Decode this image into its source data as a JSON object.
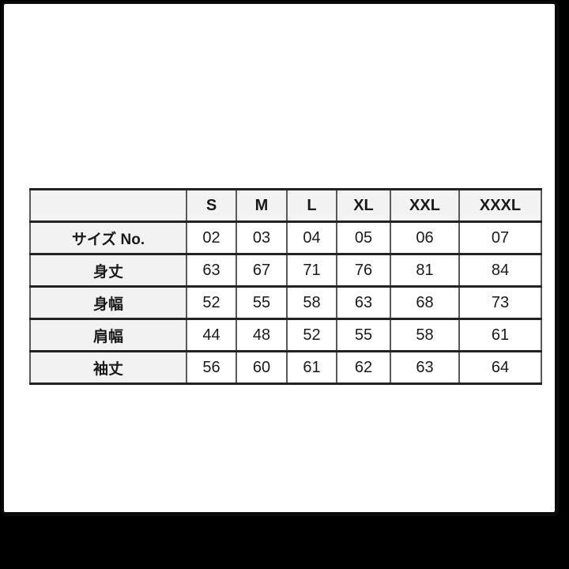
{
  "colors": {
    "page_background": "#000000",
    "card_background": "#ffffff",
    "card_border": "#0a0a0a",
    "header_cell_background": "#f2f2f2",
    "data_cell_background": "#ffffff",
    "grid_line_horizontal": "#222222",
    "grid_line_vertical": "#5a5a5a",
    "text": "#1a1a1a"
  },
  "table": {
    "columns": [
      "",
      "S",
      "M",
      "L",
      "XL",
      "XXL",
      "XXXL"
    ],
    "rows": [
      {
        "label": "サイズ No.",
        "values": [
          "02",
          "03",
          "04",
          "05",
          "06",
          "07"
        ]
      },
      {
        "label": "身丈",
        "values": [
          "63",
          "67",
          "71",
          "76",
          "81",
          "84"
        ]
      },
      {
        "label": "身幅",
        "values": [
          "52",
          "55",
          "58",
          "63",
          "68",
          "73"
        ]
      },
      {
        "label": "肩幅",
        "values": [
          "44",
          "48",
          "52",
          "55",
          "58",
          "61"
        ]
      },
      {
        "label": "袖丈",
        "values": [
          "56",
          "60",
          "61",
          "62",
          "63",
          "64"
        ]
      }
    ]
  }
}
